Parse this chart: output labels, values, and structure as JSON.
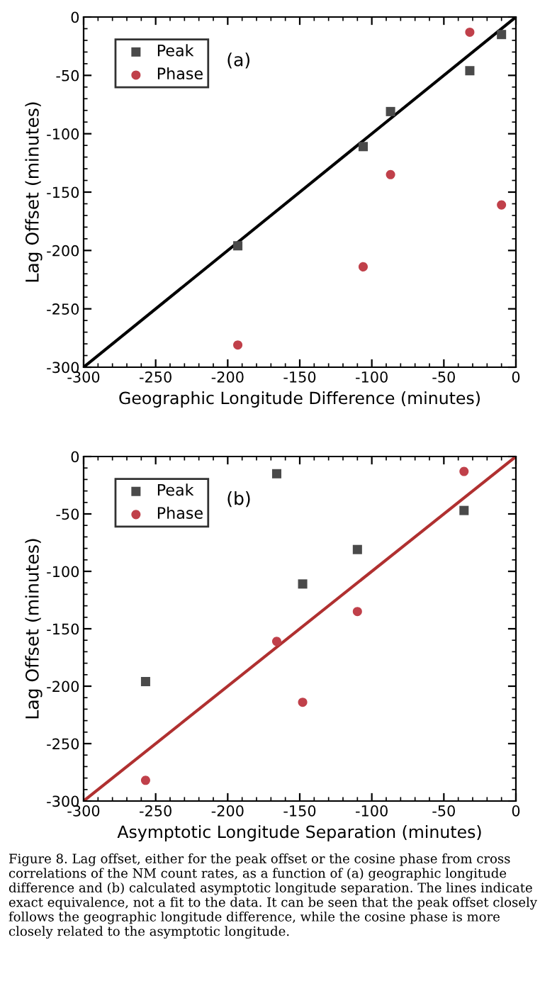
{
  "chart_data": [
    {
      "type": "scatter",
      "xlabel": "Geographic Longitude Difference (minutes)",
      "ylabel": "Lag Offset (minutes)",
      "xlim": [
        -300,
        0
      ],
      "ylim": [
        -300,
        0
      ],
      "xticks": [
        -300,
        -250,
        -200,
        -150,
        -100,
        -50,
        0
      ],
      "yticks": [
        -300,
        -250,
        -200,
        -150,
        -100,
        -50,
        0
      ],
      "legend": "top left",
      "grid": false,
      "annotations": [
        "(a)"
      ],
      "series": [
        {
          "name": "Peak",
          "marker": "square",
          "color": "#4a4a4a",
          "x": [
            -193,
            -106,
            -87,
            -32,
            -10
          ],
          "values": [
            -196,
            -111,
            -81,
            -46,
            -15
          ]
        },
        {
          "name": "Phase",
          "marker": "circle",
          "color": "#c0404a",
          "x": [
            -193,
            -106,
            -87,
            -32,
            -10
          ],
          "values": [
            -281,
            -214,
            -135,
            -13,
            -161
          ]
        },
        {
          "type": "line",
          "marker": "none",
          "line_style": "solid",
          "color": "#000000",
          "x": [
            -300,
            0
          ],
          "values": [
            -300,
            0
          ]
        }
      ]
    },
    {
      "type": "scatter",
      "xlabel": "Asymptotic Longitude Separation (minutes)",
      "ylabel": "Lag Offset (minutes)",
      "xlim": [
        -300,
        0
      ],
      "ylim": [
        -300,
        0
      ],
      "xticks": [
        -300,
        -250,
        -200,
        -150,
        -100,
        -50,
        0
      ],
      "yticks": [
        -300,
        -250,
        -200,
        -150,
        -100,
        -50,
        0
      ],
      "legend": "top left",
      "grid": false,
      "annotations": [
        "(b)",
        "Figure 8. Lag offset, either for the peak offset or the cosine phase from cross correlations of the NM count rates, as a function of (a) geographic longitude difference and (b) calculated asymptotic longitude separation. The lines indicate exact equivalence, not a fit to the data. It can be seen that the peak offset closely follows the geographic longitude difference, while the cosine phase is more closely related to the asymptotic longitude."
      ],
      "series": [
        {
          "name": "Peak",
          "marker": "square",
          "color": "#4a4a4a",
          "x": [
            -257,
            -166,
            -148,
            -110,
            -36
          ],
          "values": [
            -196,
            -15,
            -111,
            -81,
            -47
          ]
        },
        {
          "name": "Phase",
          "marker": "circle",
          "color": "#c0404a",
          "x": [
            -257,
            -166,
            -148,
            -110,
            -36
          ],
          "values": [
            -282,
            -161,
            -214,
            -135,
            -13
          ]
        },
        {
          "type": "line",
          "marker": "none",
          "line_style": "solid",
          "color": "#b03030",
          "x": [
            -300,
            0
          ],
          "values": [
            -300,
            0
          ]
        }
      ]
    }
  ]
}
